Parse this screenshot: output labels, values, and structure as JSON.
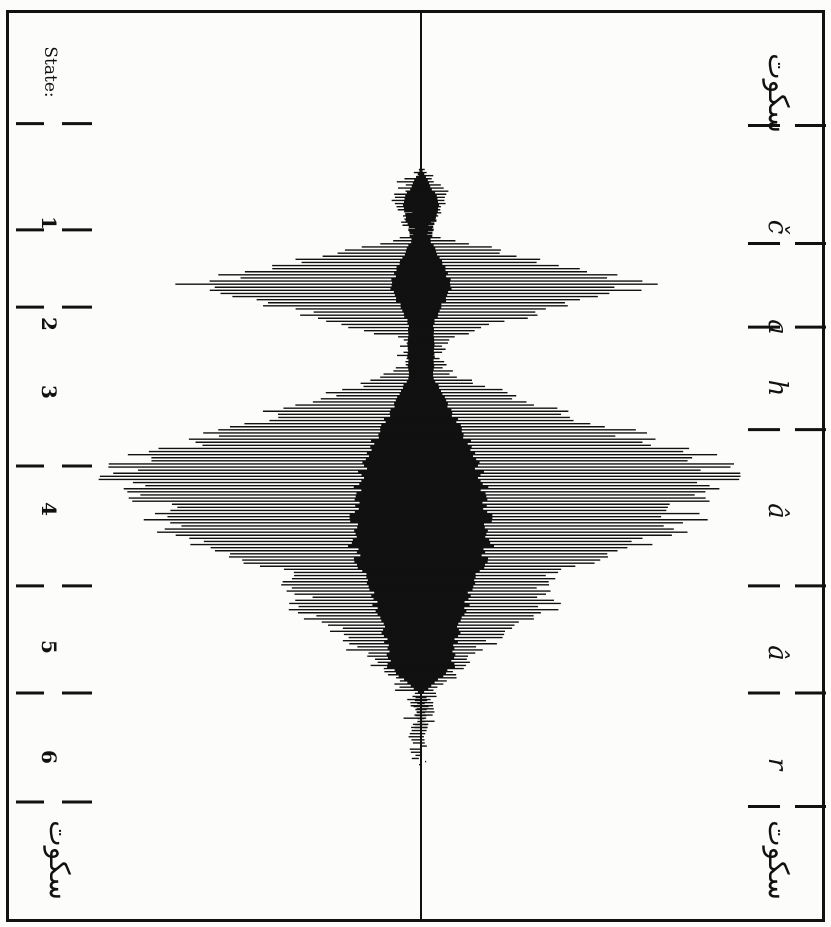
{
  "chart_data": {
    "type": "line",
    "title": "",
    "xlabel": "",
    "ylabel": "",
    "orientation": "vertical-time-axis",
    "state_axis_label": "State:",
    "states": [
      "1",
      "2",
      "3",
      "4",
      "5",
      "6"
    ],
    "phonemes": [
      "č",
      "a",
      "h",
      "â",
      "â",
      "r"
    ],
    "pause_label": "سکوت",
    "state_boundaries_t": [
      0.0,
      0.123,
      0.24,
      0.325,
      0.5,
      0.632,
      0.75,
      0.87,
      1.0
    ],
    "phoneme_boundaries_t": [
      0.0,
      0.125,
      0.255,
      0.347,
      0.46,
      0.632,
      0.75,
      0.875,
      1.0
    ],
    "envelope": {
      "t": [
        0.17,
        0.2,
        0.245,
        0.3,
        0.36,
        0.38,
        0.4,
        0.5,
        0.53,
        0.59,
        0.62,
        0.66,
        0.7,
        0.75,
        0.8,
        0.83
      ],
      "amplitude": [
        0.0,
        0.09,
        0.02,
        0.72,
        0.08,
        0.05,
        0.1,
        0.97,
        0.92,
        0.72,
        0.4,
        0.4,
        0.2,
        0.04,
        0.02,
        0.0
      ]
    },
    "inner_blob": {
      "t": [
        0.17,
        0.21,
        0.25,
        0.3,
        0.34,
        0.4,
        0.48,
        0.52,
        0.58,
        0.62,
        0.67,
        0.72,
        0.75
      ],
      "amplitude": [
        0.0,
        0.06,
        0.03,
        0.1,
        0.04,
        0.04,
        0.16,
        0.2,
        0.22,
        0.18,
        0.12,
        0.1,
        0.0
      ]
    }
  }
}
